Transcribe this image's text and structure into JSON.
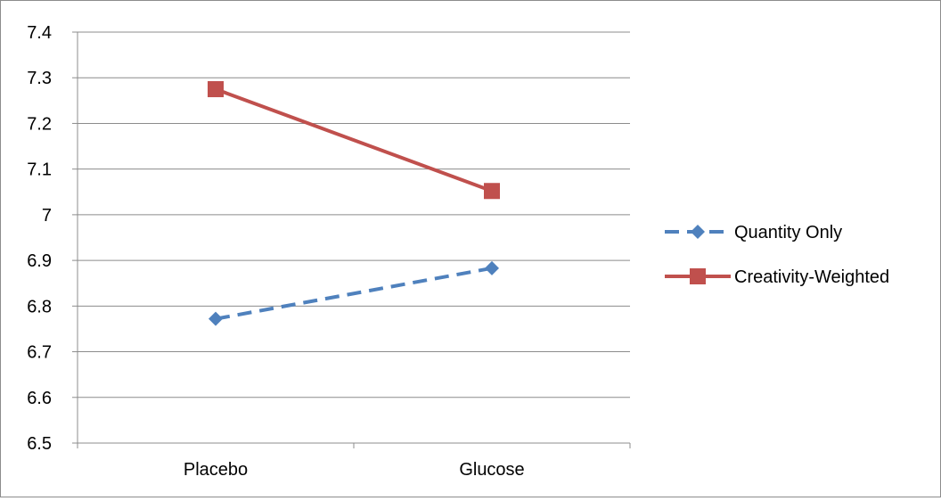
{
  "chart_data": {
    "type": "line",
    "categories": [
      "Placebo",
      "Glucose"
    ],
    "series": [
      {
        "name": "Quantity Only",
        "values": [
          6.772,
          6.883
        ],
        "color": "#4f81bd",
        "line_style": "dashed",
        "marker": "diamond"
      },
      {
        "name": "Creativity-Weighted",
        "values": [
          7.275,
          7.052
        ],
        "color": "#c0504d",
        "line_style": "solid",
        "marker": "square"
      }
    ],
    "title": "",
    "xlabel": "",
    "ylabel": "",
    "ylim": [
      6.5,
      7.4
    ],
    "yticks": [
      "6.5",
      "6.6",
      "6.7",
      "6.8",
      "6.9",
      "7",
      "7.1",
      "7.2",
      "7.3",
      "7.4"
    ],
    "grid": "horizontal",
    "legend": "right"
  }
}
